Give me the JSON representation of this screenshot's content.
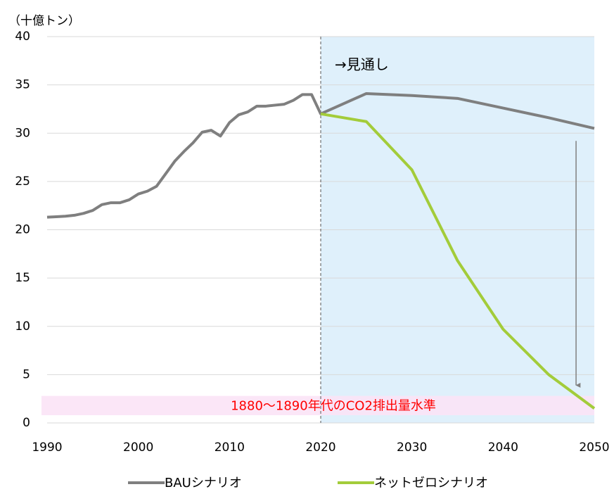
{
  "chart_data": {
    "type": "line",
    "unit_label": "（十億トン）",
    "x": [
      1990,
      1991,
      1992,
      1993,
      1994,
      1995,
      1996,
      1997,
      1998,
      1999,
      2000,
      2001,
      2002,
      2003,
      2004,
      2005,
      2006,
      2007,
      2008,
      2009,
      2010,
      2011,
      2012,
      2013,
      2014,
      2015,
      2016,
      2017,
      2018,
      2019,
      2020,
      2025,
      2030,
      2035,
      2040,
      2045,
      2050
    ],
    "series": [
      {
        "name": "BAUシナリオ",
        "color": "#7f7f7f",
        "values": [
          21.3,
          21.35,
          21.4,
          21.5,
          21.7,
          22.0,
          22.6,
          22.8,
          22.8,
          23.1,
          23.7,
          24.0,
          24.5,
          25.8,
          27.1,
          28.1,
          29.0,
          30.1,
          30.3,
          29.7,
          31.1,
          31.9,
          32.2,
          32.8,
          32.8,
          32.9,
          33.0,
          33.4,
          34.0,
          34.0,
          32.0,
          34.1,
          33.9,
          33.6,
          32.6,
          31.6,
          30.5
        ]
      },
      {
        "name": "ネットゼロシナリオ",
        "color": "#a3cc3a",
        "values": [
          null,
          null,
          null,
          null,
          null,
          null,
          null,
          null,
          null,
          null,
          null,
          null,
          null,
          null,
          null,
          null,
          null,
          null,
          null,
          null,
          null,
          null,
          null,
          null,
          null,
          null,
          null,
          null,
          null,
          null,
          32.0,
          31.2,
          26.2,
          16.8,
          9.7,
          5.0,
          1.5
        ]
      }
    ],
    "xlim": [
      1990,
      2050
    ],
    "xticks": [
      1990,
      2000,
      2010,
      2020,
      2030,
      2040,
      2050
    ],
    "ylim": [
      0,
      40
    ],
    "yticks": [
      0,
      5,
      10,
      15,
      20,
      25,
      30,
      35,
      40
    ],
    "grid": true,
    "forecast": {
      "label": "→見通し",
      "x_range": [
        2020,
        2050
      ],
      "color": "#dff0fb"
    },
    "band": {
      "label": "1880〜1890年代のCO2排出量水準",
      "y_range": [
        0.8,
        2.8
      ],
      "color": "#fbe3f6"
    },
    "arrow": {
      "x": 2048,
      "from": 29.2,
      "to": 3.9
    }
  }
}
